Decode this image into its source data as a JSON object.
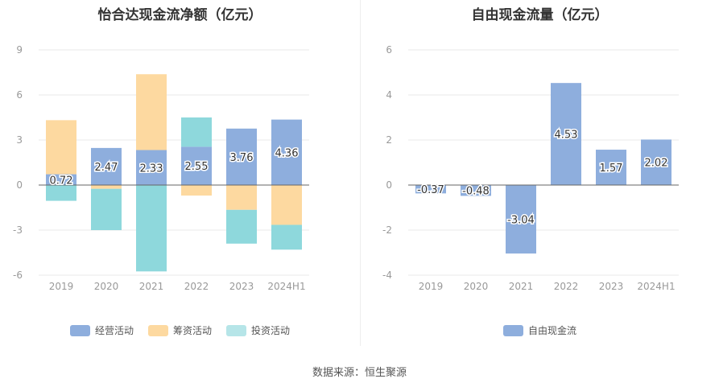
{
  "left_chart": {
    "chart_data": {
      "type": "bar",
      "stacked": true,
      "title": "怡合达现金流净额（亿元）",
      "categories": [
        "2019",
        "2020",
        "2021",
        "2022",
        "2023",
        "2024H1"
      ],
      "ylim": [
        -6,
        9
      ],
      "yticks": [
        -6,
        -3,
        0,
        3,
        6,
        9
      ],
      "grid": true,
      "legend_position": "bottom",
      "series": [
        {
          "name": "经营活动",
          "color": "#8eaedd",
          "values": [
            0.72,
            2.47,
            2.33,
            2.55,
            3.76,
            4.36
          ],
          "labels": [
            "0.72",
            "2.47",
            "2.33",
            "2.55",
            "3.76",
            "4.36"
          ]
        },
        {
          "name": "筹资活动",
          "color": "#fdd9a0",
          "values": [
            3.6,
            -0.25,
            5.05,
            -0.7,
            -1.65,
            -2.65
          ]
        },
        {
          "name": "投资活动",
          "color": "#8ed8dc",
          "values": [
            -1.05,
            -2.75,
            -5.75,
            1.95,
            -2.25,
            -1.65
          ]
        }
      ]
    }
  },
  "right_chart": {
    "chart_data": {
      "type": "bar",
      "title": "自由现金流量（亿元）",
      "categories": [
        "2019",
        "2020",
        "2021",
        "2022",
        "2023",
        "2024H1"
      ],
      "ylim": [
        -4,
        6
      ],
      "yticks": [
        -4,
        -2,
        0,
        2,
        4,
        6
      ],
      "grid": true,
      "legend_position": "bottom",
      "series": [
        {
          "name": "自由现金流",
          "color": "#8eaedd",
          "values": [
            -0.37,
            -0.48,
            -3.04,
            4.53,
            1.57,
            2.02
          ],
          "labels": [
            "-0.37",
            "-0.48",
            "-3.04",
            "4.53",
            "1.57",
            "2.02"
          ]
        }
      ]
    }
  },
  "footer": {
    "source": "数据来源：恒生聚源"
  }
}
